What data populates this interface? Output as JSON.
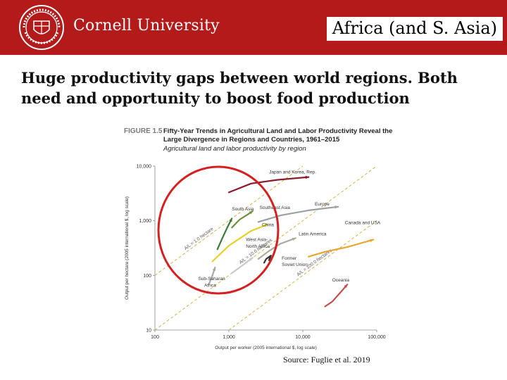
{
  "header": {
    "brand": "Cornell University",
    "slide_title": "Africa (and S. Asia)"
  },
  "subtitle": "Huge productivity gaps between world regions. Both need and opportunity to boost food production",
  "source": "Source: Fuglie et al. 2019",
  "colors": {
    "header": "#b31b1b",
    "highlight_circle": "#d42020",
    "guide_line": "#d7b24a"
  },
  "figure": {
    "label": "FIGURE 1.5",
    "title_line1": "Fifty-Year Trends in Agricultural Land and Labor Productivity Reveal the",
    "title_line2": "Large Divergence in Regions and Countries, 1961–2015",
    "caption": "Agricultural land and labor productivity by region"
  },
  "chart_data": {
    "type": "line",
    "x_scale": "log",
    "y_scale": "log",
    "xlim": [
      100,
      100000
    ],
    "ylim": [
      10,
      10000
    ],
    "xlabel": "Output per worker (2005 international $, log scale)",
    "ylabel": "Output per hectare (2005 international $, log scale)",
    "x_ticks": [
      "100",
      "1,000",
      "10,000",
      "100,000"
    ],
    "y_ticks": [
      "10",
      "100",
      "1,000",
      "10,000"
    ],
    "guides": [
      {
        "label": "A/L = 1.0 hectare",
        "ratio": 1
      },
      {
        "label": "A/L = 10.0 hectares",
        "ratio": 10
      },
      {
        "label": "A/L = 100.0 hectares",
        "ratio": 100
      }
    ],
    "series": [
      {
        "name": "Japan and Korea, Rep.",
        "color": "#8b1a2b",
        "points": [
          [
            1000,
            3300
          ],
          [
            2000,
            4800
          ],
          [
            4500,
            5600
          ],
          [
            12000,
            6300
          ]
        ]
      },
      {
        "name": "Europe",
        "color": "#9aa0a6",
        "points": [
          [
            2500,
            950
          ],
          [
            5000,
            1250
          ],
          [
            12000,
            1550
          ],
          [
            30000,
            1800
          ]
        ]
      },
      {
        "name": "South Asia",
        "color": "#3d7a3a",
        "points": [
          [
            700,
            300
          ],
          [
            800,
            450
          ],
          [
            950,
            750
          ],
          [
            1100,
            1100
          ]
        ]
      },
      {
        "name": "Southeast Asia",
        "color": "#6b8f3a",
        "points": [
          [
            1100,
            750
          ],
          [
            1400,
            1050
          ],
          [
            1800,
            1300
          ],
          [
            2100,
            1500
          ]
        ]
      },
      {
        "name": "China",
        "color": "#e6d12a",
        "points": [
          [
            600,
            180
          ],
          [
            1000,
            350
          ],
          [
            2000,
            650
          ],
          [
            3300,
            850
          ]
        ]
      },
      {
        "name": "Latin America",
        "color": "#b0aa9a",
        "points": [
          [
            2500,
            200
          ],
          [
            3500,
            280
          ],
          [
            5000,
            380
          ],
          [
            8000,
            480
          ]
        ]
      },
      {
        "name": "Canada and USA",
        "color": "#e8a531",
        "points": [
          [
            12000,
            220
          ],
          [
            20000,
            270
          ],
          [
            40000,
            330
          ],
          [
            90000,
            450
          ]
        ]
      },
      {
        "name": "West Asia-North Africa",
        "color": "#c9c9c9",
        "points": [
          [
            1100,
            110
          ],
          [
            1500,
            150
          ],
          [
            2100,
            210
          ]
        ]
      },
      {
        "name": "Former Soviet Union",
        "color": "#333333",
        "points": [
          [
            3000,
            170
          ],
          [
            3200,
            200
          ],
          [
            3700,
            230
          ],
          [
            3500,
            190
          ]
        ]
      },
      {
        "name": "Sub-Saharan Africa",
        "color": "#a8a8a8",
        "points": [
          [
            540,
            70
          ],
          [
            600,
            100
          ],
          [
            650,
            140
          ]
        ]
      },
      {
        "name": "Oceania",
        "color": "#c0504d",
        "points": [
          [
            20000,
            27
          ],
          [
            25000,
            33
          ],
          [
            32000,
            48
          ],
          [
            40000,
            68
          ]
        ]
      }
    ],
    "labels": [
      {
        "text": "Japan and Korea, Rep.",
        "x": 3500,
        "y": 7300
      },
      {
        "text": "Europe",
        "x": 14500,
        "y": 1900
      },
      {
        "text": "South Asia",
        "x": 1100,
        "y": 1550
      },
      {
        "text": "Southeast Asia",
        "x": 2600,
        "y": 1650
      },
      {
        "text": "China",
        "x": 2800,
        "y": 790
      },
      {
        "text": "Latin America",
        "x": 8800,
        "y": 540
      },
      {
        "text": "Canada and USA",
        "x": 37000,
        "y": 870
      },
      {
        "text": "West Asia-",
        "x": 1700,
        "y": 425
      },
      {
        "text": "North Africa",
        "x": 1700,
        "y": 320
      },
      {
        "text": "Former",
        "x": 5200,
        "y": 195
      },
      {
        "text": "Soviet Union",
        "x": 5200,
        "y": 148
      },
      {
        "text": "Oceania",
        "x": 25000,
        "y": 77
      },
      {
        "text": "Sub-Saharan",
        "x": 385,
        "y": 82
      },
      {
        "text": "Africa",
        "x": 465,
        "y": 62
      }
    ]
  }
}
